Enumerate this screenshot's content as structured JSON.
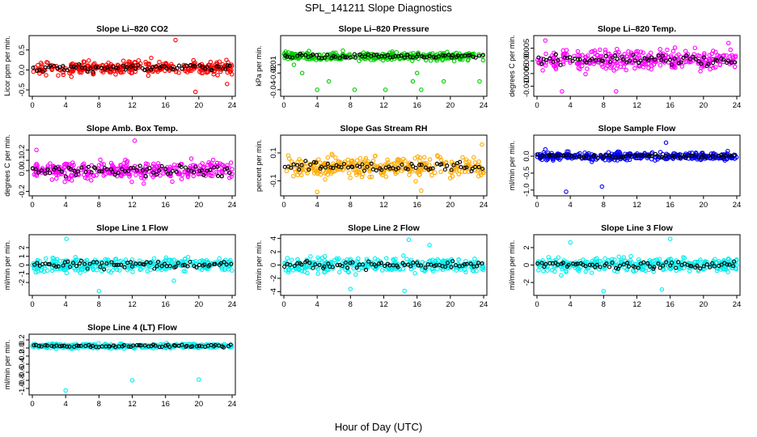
{
  "figure": {
    "title": "SPL_141211  Slope Diagnostics",
    "xlabel": "Hour of Day (UTC)"
  },
  "chart_data": [
    {
      "type": "scatter",
      "title": "Slope Li–820 CO2",
      "ylabel": "Licor ppm per min.",
      "xlim": [
        0,
        24
      ],
      "ylim": [
        -0.6,
        0.8
      ],
      "xticks": [
        "0",
        "4",
        "8",
        "12",
        "16",
        "20",
        "24"
      ],
      "yticks": [
        "-0.5",
        "0.0",
        "0.5"
      ],
      "ytick_values": [
        -0.5,
        0,
        0.5
      ],
      "color": "#ff0000",
      "spread": 0.18,
      "center": 0.05,
      "outliers": [
        [
          17.2,
          0.75
        ],
        [
          19.6,
          -0.55
        ],
        [
          23.4,
          -0.35
        ]
      ],
      "seed": 11
    },
    {
      "type": "scatter",
      "title": "Slope Li–820 Pressure",
      "ylabel": "kPa per min.",
      "xlim": [
        0,
        24
      ],
      "ylim": [
        -0.045,
        0.022
      ],
      "xticks": [
        "0",
        "4",
        "8",
        "12",
        "16",
        "20",
        "24"
      ],
      "yticks": [
        "-0.04",
        "-0.02",
        "-0.01"
      ],
      "ytick_values": [
        -0.04,
        -0.02,
        -0.01
      ],
      "color": "#00cc00",
      "spread": 0.005,
      "center": 0.0,
      "outliers": [
        [
          1.2,
          -0.01
        ],
        [
          2.2,
          -0.02
        ],
        [
          4.0,
          -0.04
        ],
        [
          5.4,
          -0.03
        ],
        [
          8.5,
          -0.04
        ],
        [
          12.2,
          -0.04
        ],
        [
          15.5,
          -0.03
        ],
        [
          16.0,
          -0.02
        ],
        [
          19.2,
          -0.03
        ],
        [
          23.5,
          -0.03
        ],
        [
          16.5,
          -0.04
        ]
      ],
      "seed": 23
    },
    {
      "type": "scatter",
      "title": "Slope Li–820 Temp.",
      "ylabel": "degrees C per min.",
      "xlim": [
        0,
        24
      ],
      "ylim": [
        -0.013,
        0.009
      ],
      "xticks": [
        "0",
        "4",
        "8",
        "12",
        "16",
        "20",
        "24"
      ],
      "yticks": [
        "-0.010",
        "-0.005",
        "0.000",
        "0.005"
      ],
      "ytick_values": [
        -0.01,
        -0.005,
        0,
        0.005
      ],
      "color": "#ff00ff",
      "spread": 0.004,
      "center": 0.0005,
      "outliers": [
        [
          1.0,
          0.008
        ],
        [
          3.0,
          -0.012
        ],
        [
          9.5,
          -0.012
        ],
        [
          23.0,
          0.007
        ]
      ],
      "seed": 37
    },
    {
      "type": "scatter",
      "title": "Slope Amb. Box Temp.",
      "ylabel": "degrees C per min.",
      "xlim": [
        0,
        24
      ],
      "ylim": [
        -0.22,
        0.32
      ],
      "xticks": [
        "0",
        "4",
        "8",
        "12",
        "16",
        "20",
        "24"
      ],
      "yticks": [
        "-0.2",
        "0.0",
        "0.1",
        "0.2"
      ],
      "ytick_values": [
        -0.2,
        0,
        0.1,
        0.2
      ],
      "color": "#ff00ff",
      "spread": 0.09,
      "center": 0.0,
      "outliers": [
        [
          12.3,
          0.29
        ],
        [
          0.5,
          0.2
        ]
      ],
      "seed": 41
    },
    {
      "type": "scatter",
      "title": "Slope Gas Stream RH",
      "ylabel": "percent per min.",
      "xlim": [
        0,
        24
      ],
      "ylim": [
        -0.19,
        0.21
      ],
      "xticks": [
        "0",
        "4",
        "8",
        "12",
        "16",
        "20",
        "24"
      ],
      "yticks": [
        "-0.1",
        "0.1"
      ],
      "ytick_values": [
        -0.1,
        0.1
      ],
      "color": "#ffaa00",
      "spread": 0.075,
      "center": 0.0,
      "outliers": [
        [
          4.0,
          -0.18
        ],
        [
          16.5,
          -0.17
        ],
        [
          23.8,
          0.16
        ]
      ],
      "seed": 53
    },
    {
      "type": "scatter",
      "title": "Slope Sample Flow",
      "ylabel": "ml/min per min.",
      "xlim": [
        0,
        24
      ],
      "ylim": [
        -1.1,
        0.55
      ],
      "xticks": [
        "0",
        "4",
        "8",
        "12",
        "16",
        "20",
        "24"
      ],
      "yticks": [
        "-1.0",
        "-0.5",
        "0.0"
      ],
      "ytick_values": [
        -1.0,
        -0.5,
        0
      ],
      "color": "#0000ff",
      "spread": 0.12,
      "center": 0.0,
      "outliers": [
        [
          3.5,
          -1.05
        ],
        [
          15.5,
          0.4
        ],
        [
          7.8,
          -0.9
        ],
        [
          1.0,
          0.2
        ]
      ],
      "seed": 67
    },
    {
      "type": "scatter",
      "title": "Slope Line 1 Flow",
      "ylabel": "ml/min per min.",
      "xlim": [
        0,
        24
      ],
      "ylim": [
        -3.2,
        3.2
      ],
      "xticks": [
        "0",
        "4",
        "8",
        "12",
        "16",
        "20",
        "24"
      ],
      "yticks": [
        "-2",
        "-1",
        "0",
        "1",
        "2"
      ],
      "ytick_values": [
        -2,
        -1,
        0,
        1,
        2
      ],
      "color": "#00eeee",
      "spread": 0.8,
      "center": 0.0,
      "outliers": [
        [
          4.1,
          3.0
        ],
        [
          8.0,
          -3.0
        ],
        [
          17.0,
          -1.8
        ]
      ],
      "seed": 71
    },
    {
      "type": "scatter",
      "title": "Slope Line 2 Flow",
      "ylabel": "ml/min per min.",
      "xlim": [
        0,
        24
      ],
      "ylim": [
        -4.2,
        4.2
      ],
      "xticks": [
        "0",
        "4",
        "8",
        "12",
        "16",
        "20",
        "24"
      ],
      "yticks": [
        "-4",
        "-2",
        "0",
        "2",
        "4"
      ],
      "ytick_values": [
        -4,
        -2,
        0,
        2,
        4
      ],
      "color": "#00eeee",
      "spread": 1.1,
      "center": 0.0,
      "outliers": [
        [
          15.0,
          3.8
        ],
        [
          8.0,
          -3.6
        ],
        [
          14.5,
          -3.9
        ],
        [
          17.5,
          3.0
        ]
      ],
      "seed": 83
    },
    {
      "type": "scatter",
      "title": "Slope Line 3 Flow",
      "ylabel": "ml/min per min.",
      "xlim": [
        0,
        24
      ],
      "ylim": [
        -3.2,
        3.2
      ],
      "xticks": [
        "0",
        "4",
        "8",
        "12",
        "16",
        "20",
        "24"
      ],
      "yticks": [
        "-2",
        "0",
        "2"
      ],
      "ytick_values": [
        -2,
        0,
        2
      ],
      "color": "#00eeee",
      "spread": 0.8,
      "center": 0.0,
      "outliers": [
        [
          8.0,
          -3.0
        ],
        [
          15.0,
          -2.8
        ],
        [
          16.0,
          3.0
        ],
        [
          4.0,
          2.6
        ]
      ],
      "seed": 97
    },
    {
      "type": "scatter",
      "title": "Slope Line 4 (LT) Flow",
      "ylabel": "ml/min per min.",
      "xlim": [
        0,
        24
      ],
      "ylim": [
        -1.1,
        0.28
      ],
      "xticks": [
        "0",
        "4",
        "8",
        "12",
        "16",
        "20",
        "24"
      ],
      "yticks": [
        "-1.0",
        "-0.8",
        "-0.6",
        "-0.4",
        "-0.2",
        "0.0",
        "0.2"
      ],
      "ytick_values": [
        -1.0,
        -0.8,
        -0.6,
        -0.4,
        -0.2,
        0,
        0.2
      ],
      "color": "#00eeee",
      "spread": 0.06,
      "center": 0.05,
      "outliers": [
        [
          4.0,
          -1.05
        ],
        [
          12.0,
          -0.8
        ],
        [
          20.0,
          -0.78
        ],
        [
          0.3,
          0.1
        ]
      ],
      "seed": 101
    }
  ]
}
